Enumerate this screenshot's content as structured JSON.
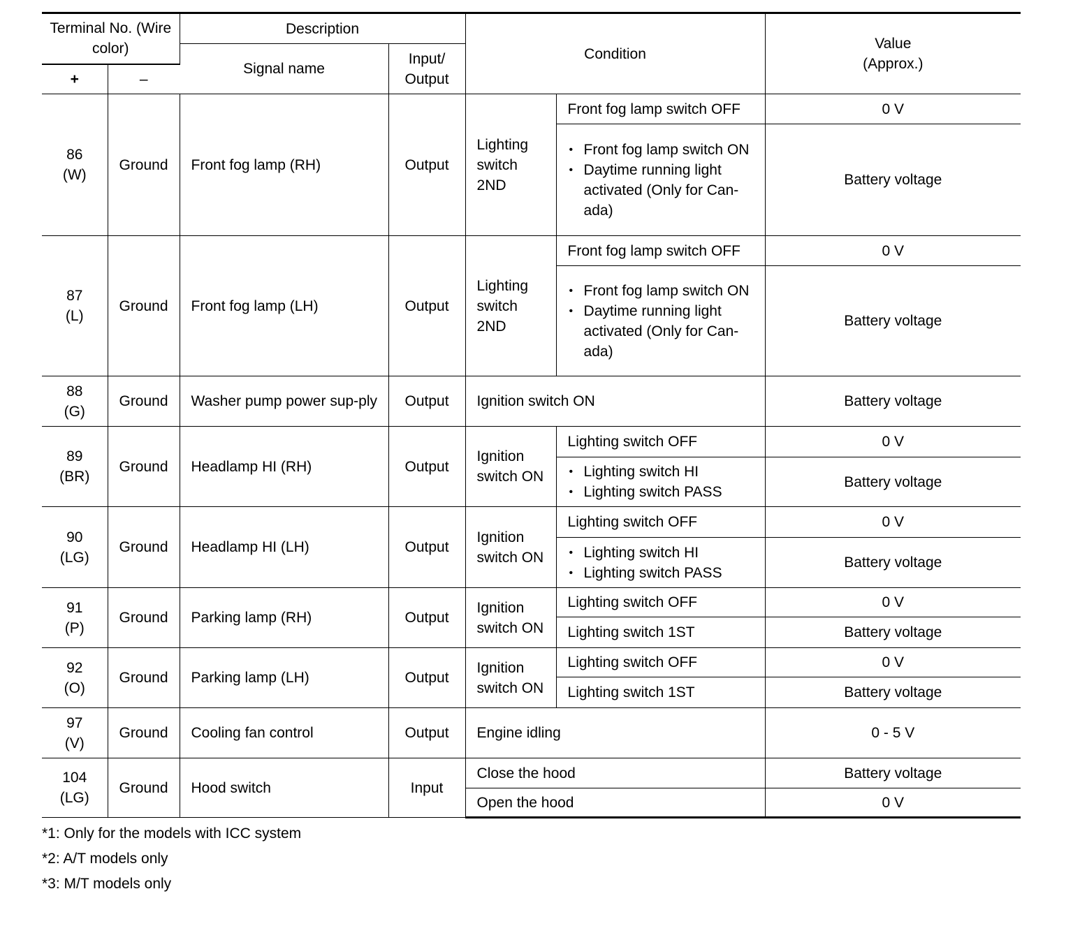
{
  "header": {
    "terminal": "Terminal No. (Wire color)",
    "plus": "+",
    "minus": "–",
    "description": "Description",
    "signal_name": "Signal name",
    "input_output": "Input/ Output",
    "condition": "Condition",
    "value": "Value (Approx.)"
  },
  "rows": [
    {
      "plus": "86",
      "wire": "(W)",
      "minus": "Ground",
      "signal": "Front fog lamp (RH)",
      "io": "Output",
      "condition": "Lighting switch 2ND",
      "subs": [
        {
          "cond": [
            "Front fog lamp switch OFF"
          ],
          "bullets": false,
          "value": "0 V"
        },
        {
          "cond": [
            "Front fog lamp switch ON",
            "Daytime running light activated (Only for Can-ada)"
          ],
          "bullets": true,
          "value": "Battery voltage"
        }
      ]
    },
    {
      "plus": "87",
      "wire": "(L)",
      "minus": "Ground",
      "signal": "Front fog lamp (LH)",
      "io": "Output",
      "condition": "Lighting switch 2ND",
      "subs": [
        {
          "cond": [
            "Front fog lamp switch OFF"
          ],
          "bullets": false,
          "value": "0 V"
        },
        {
          "cond": [
            "Front fog lamp switch ON",
            "Daytime running light activated (Only for Can-ada)"
          ],
          "bullets": true,
          "value": "Battery voltage"
        }
      ]
    },
    {
      "plus": "88",
      "wire": "(G)",
      "minus": "Ground",
      "signal": "Washer pump power sup-ply",
      "io": "Output",
      "condition": "",
      "subs": [
        {
          "cond": [
            "Ignition switch ON"
          ],
          "bullets": false,
          "value": "Battery voltage"
        }
      ]
    },
    {
      "plus": "89",
      "wire": "(BR)",
      "minus": "Ground",
      "signal": "Headlamp HI (RH)",
      "io": "Output",
      "condition": "Ignition switch ON",
      "subs": [
        {
          "cond": [
            "Lighting switch OFF"
          ],
          "bullets": false,
          "value": "0 V"
        },
        {
          "cond": [
            "Lighting switch HI",
            "Lighting switch PASS"
          ],
          "bullets": true,
          "value": "Battery voltage"
        }
      ]
    },
    {
      "plus": "90",
      "wire": "(LG)",
      "minus": "Ground",
      "signal": "Headlamp HI (LH)",
      "io": "Output",
      "condition": "Ignition switch ON",
      "subs": [
        {
          "cond": [
            "Lighting switch OFF"
          ],
          "bullets": false,
          "value": "0 V"
        },
        {
          "cond": [
            "Lighting switch HI",
            "Lighting switch PASS"
          ],
          "bullets": true,
          "value": "Battery voltage"
        }
      ]
    },
    {
      "plus": "91",
      "wire": "(P)",
      "minus": "Ground",
      "signal": "Parking lamp (RH)",
      "io": "Output",
      "condition": "Ignition switch ON",
      "subs": [
        {
          "cond": [
            "Lighting switch OFF"
          ],
          "bullets": false,
          "value": "0 V"
        },
        {
          "cond": [
            "Lighting switch 1ST"
          ],
          "bullets": false,
          "value": "Battery voltage"
        }
      ]
    },
    {
      "plus": "92",
      "wire": "(O)",
      "minus": "Ground",
      "signal": "Parking lamp (LH)",
      "io": "Output",
      "condition": "Ignition switch ON",
      "subs": [
        {
          "cond": [
            "Lighting switch OFF"
          ],
          "bullets": false,
          "value": "0 V"
        },
        {
          "cond": [
            "Lighting switch 1ST"
          ],
          "bullets": false,
          "value": "Battery voltage"
        }
      ]
    },
    {
      "plus": "97",
      "wire": "(V)",
      "minus": "Ground",
      "signal": "Cooling fan control",
      "io": "Output",
      "condition": "",
      "subs": [
        {
          "cond": [
            "Engine idling"
          ],
          "bullets": false,
          "value": "0 - 5 V"
        }
      ]
    },
    {
      "plus": "104",
      "wire": "(LG)",
      "minus": "Ground",
      "signal": "Hood switch",
      "io": "Input",
      "condition": "",
      "subs": [
        {
          "cond": [
            "Close the hood"
          ],
          "bullets": false,
          "value": "Battery voltage"
        },
        {
          "cond": [
            "Open the hood"
          ],
          "bullets": false,
          "value": "0 V"
        }
      ]
    }
  ],
  "footnotes": [
    "*1: Only for the models with ICC system",
    "*2: A/T models only",
    "*3: M/T models only"
  ]
}
